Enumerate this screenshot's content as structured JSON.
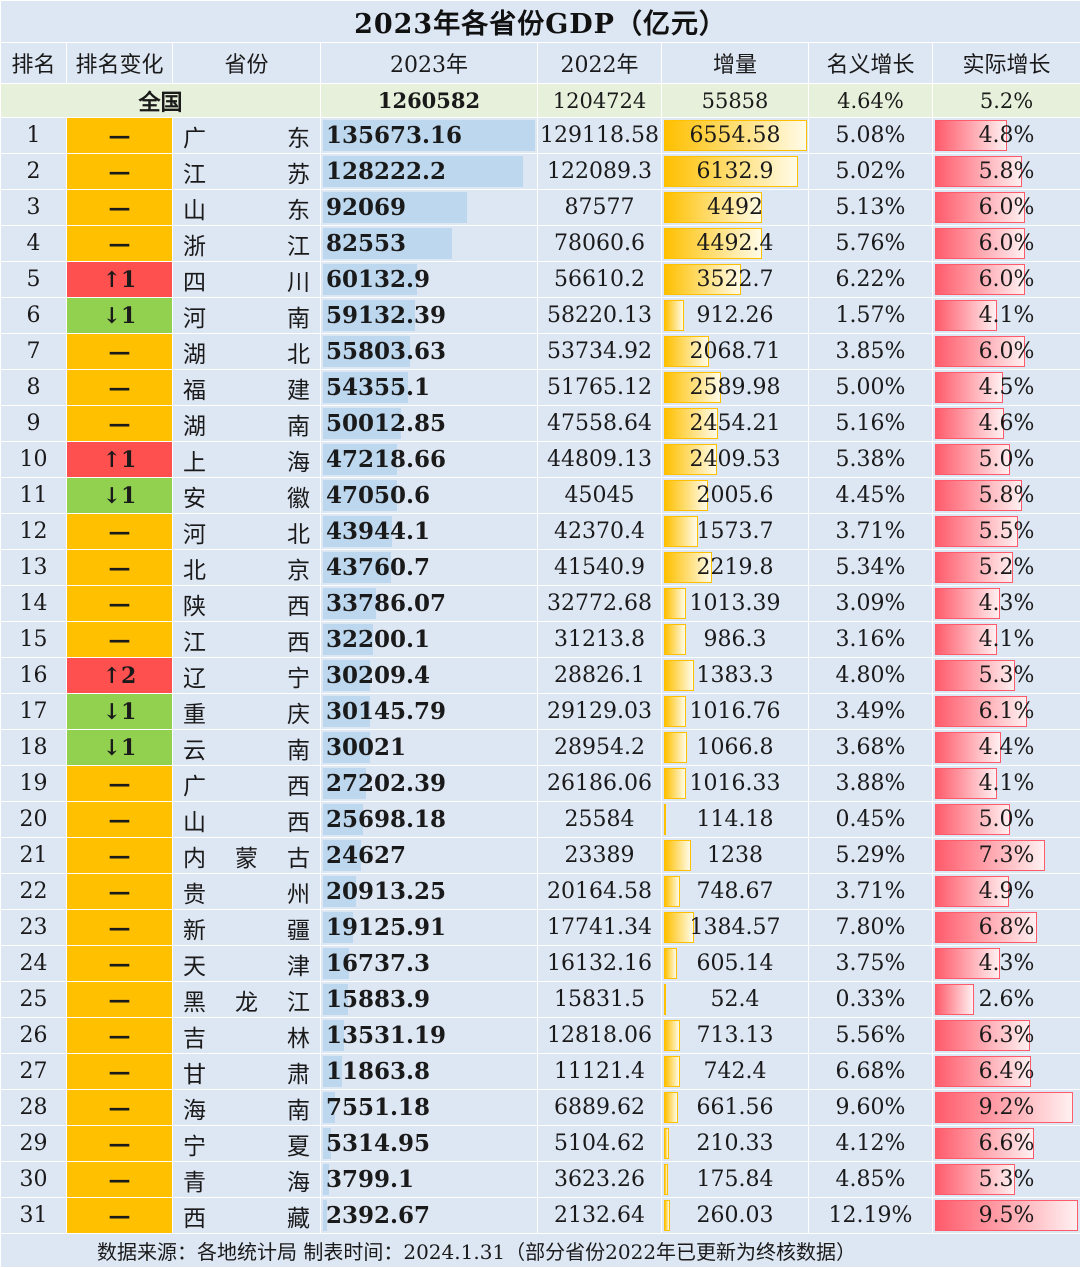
{
  "title": "2023年各省份GDP（亿元）",
  "headers": [
    "排名",
    "排名变化",
    "省份",
    "2023年",
    "2022年",
    "增量",
    "名义增长",
    "实际增长"
  ],
  "total": {
    "name": "全国",
    "gdp2023": "1260582",
    "gdp2022": "1204724",
    "increase": "55858",
    "nominal": "4.64%",
    "real": "5.2%"
  },
  "colors": {
    "same": "#ffc000",
    "up": "#ff5050",
    "down": "#92d050",
    "gdp_bar": "#bdd7ee",
    "increase_bar": "#ffc000",
    "real_bar": "#ff5b6b"
  },
  "change_symbols": {
    "same": "—",
    "up": "↑",
    "down": "↓"
  },
  "rows": [
    {
      "rank": "1",
      "change": "—",
      "province": "广东",
      "gdp2023": "135673.16",
      "gdp2022": "129118.58",
      "increase": "6554.58",
      "nominal": "5.08%",
      "real": "4.8%"
    },
    {
      "rank": "2",
      "change": "—",
      "province": "江苏",
      "gdp2023": "128222.2",
      "gdp2022": "122089.3",
      "increase": "6132.9",
      "nominal": "5.02%",
      "real": "5.8%"
    },
    {
      "rank": "3",
      "change": "—",
      "province": "山东",
      "gdp2023": "92069",
      "gdp2022": "87577",
      "increase": "4492",
      "nominal": "5.13%",
      "real": "6.0%"
    },
    {
      "rank": "4",
      "change": "—",
      "province": "浙江",
      "gdp2023": "82553",
      "gdp2022": "78060.6",
      "increase": "4492.4",
      "nominal": "5.76%",
      "real": "6.0%"
    },
    {
      "rank": "5",
      "change": "↑1",
      "province": "四川",
      "gdp2023": "60132.9",
      "gdp2022": "56610.2",
      "increase": "3522.7",
      "nominal": "6.22%",
      "real": "6.0%"
    },
    {
      "rank": "6",
      "change": "↓1",
      "province": "河南",
      "gdp2023": "59132.39",
      "gdp2022": "58220.13",
      "increase": "912.26",
      "nominal": "1.57%",
      "real": "4.1%"
    },
    {
      "rank": "7",
      "change": "—",
      "province": "湖北",
      "gdp2023": "55803.63",
      "gdp2022": "53734.92",
      "increase": "2068.71",
      "nominal": "3.85%",
      "real": "6.0%"
    },
    {
      "rank": "8",
      "change": "—",
      "province": "福建",
      "gdp2023": "54355.1",
      "gdp2022": "51765.12",
      "increase": "2589.98",
      "nominal": "5.00%",
      "real": "4.5%"
    },
    {
      "rank": "9",
      "change": "—",
      "province": "湖南",
      "gdp2023": "50012.85",
      "gdp2022": "47558.64",
      "increase": "2454.21",
      "nominal": "5.16%",
      "real": "4.6%"
    },
    {
      "rank": "10",
      "change": "↑1",
      "province": "上海",
      "gdp2023": "47218.66",
      "gdp2022": "44809.13",
      "increase": "2409.53",
      "nominal": "5.38%",
      "real": "5.0%"
    },
    {
      "rank": "11",
      "change": "↓1",
      "province": "安徽",
      "gdp2023": "47050.6",
      "gdp2022": "45045",
      "increase": "2005.6",
      "nominal": "4.45%",
      "real": "5.8%"
    },
    {
      "rank": "12",
      "change": "—",
      "province": "河北",
      "gdp2023": "43944.1",
      "gdp2022": "42370.4",
      "increase": "1573.7",
      "nominal": "3.71%",
      "real": "5.5%"
    },
    {
      "rank": "13",
      "change": "—",
      "province": "北京",
      "gdp2023": "43760.7",
      "gdp2022": "41540.9",
      "increase": "2219.8",
      "nominal": "5.34%",
      "real": "5.2%"
    },
    {
      "rank": "14",
      "change": "—",
      "province": "陕西",
      "gdp2023": "33786.07",
      "gdp2022": "32772.68",
      "increase": "1013.39",
      "nominal": "3.09%",
      "real": "4.3%"
    },
    {
      "rank": "15",
      "change": "—",
      "province": "江西",
      "gdp2023": "32200.1",
      "gdp2022": "31213.8",
      "increase": "986.3",
      "nominal": "3.16%",
      "real": "4.1%"
    },
    {
      "rank": "16",
      "change": "↑2",
      "province": "辽宁",
      "gdp2023": "30209.4",
      "gdp2022": "28826.1",
      "increase": "1383.3",
      "nominal": "4.80%",
      "real": "5.3%"
    },
    {
      "rank": "17",
      "change": "↓1",
      "province": "重庆",
      "gdp2023": "30145.79",
      "gdp2022": "29129.03",
      "increase": "1016.76",
      "nominal": "3.49%",
      "real": "6.1%"
    },
    {
      "rank": "18",
      "change": "↓1",
      "province": "云南",
      "gdp2023": "30021",
      "gdp2022": "28954.2",
      "increase": "1066.8",
      "nominal": "3.68%",
      "real": "4.4%"
    },
    {
      "rank": "19",
      "change": "—",
      "province": "广西",
      "gdp2023": "27202.39",
      "gdp2022": "26186.06",
      "increase": "1016.33",
      "nominal": "3.88%",
      "real": "4.1%"
    },
    {
      "rank": "20",
      "change": "—",
      "province": "山西",
      "gdp2023": "25698.18",
      "gdp2022": "25584",
      "increase": "114.18",
      "nominal": "0.45%",
      "real": "5.0%"
    },
    {
      "rank": "21",
      "change": "—",
      "province": "内蒙古",
      "gdp2023": "24627",
      "gdp2022": "23389",
      "increase": "1238",
      "nominal": "5.29%",
      "real": "7.3%"
    },
    {
      "rank": "22",
      "change": "—",
      "province": "贵州",
      "gdp2023": "20913.25",
      "gdp2022": "20164.58",
      "increase": "748.67",
      "nominal": "3.71%",
      "real": "4.9%"
    },
    {
      "rank": "23",
      "change": "—",
      "province": "新疆",
      "gdp2023": "19125.91",
      "gdp2022": "17741.34",
      "increase": "1384.57",
      "nominal": "7.80%",
      "real": "6.8%"
    },
    {
      "rank": "24",
      "change": "—",
      "province": "天津",
      "gdp2023": "16737.3",
      "gdp2022": "16132.16",
      "increase": "605.14",
      "nominal": "3.75%",
      "real": "4.3%"
    },
    {
      "rank": "25",
      "change": "—",
      "province": "黑龙江",
      "gdp2023": "15883.9",
      "gdp2022": "15831.5",
      "increase": "52.4",
      "nominal": "0.33%",
      "real": "2.6%"
    },
    {
      "rank": "26",
      "change": "—",
      "province": "吉林",
      "gdp2023": "13531.19",
      "gdp2022": "12818.06",
      "increase": "713.13",
      "nominal": "5.56%",
      "real": "6.3%"
    },
    {
      "rank": "27",
      "change": "—",
      "province": "甘肃",
      "gdp2023": "11863.8",
      "gdp2022": "11121.4",
      "increase": "742.4",
      "nominal": "6.68%",
      "real": "6.4%"
    },
    {
      "rank": "28",
      "change": "—",
      "province": "海南",
      "gdp2023": "7551.18",
      "gdp2022": "6889.62",
      "increase": "661.56",
      "nominal": "9.60%",
      "real": "9.2%"
    },
    {
      "rank": "29",
      "change": "—",
      "province": "宁夏",
      "gdp2023": "5314.95",
      "gdp2022": "5104.62",
      "increase": "210.33",
      "nominal": "4.12%",
      "real": "6.6%"
    },
    {
      "rank": "30",
      "change": "—",
      "province": "青海",
      "gdp2023": "3799.1",
      "gdp2022": "3623.26",
      "increase": "175.84",
      "nominal": "4.85%",
      "real": "5.3%"
    },
    {
      "rank": "31",
      "change": "—",
      "province": "西藏",
      "gdp2023": "2392.67",
      "gdp2022": "2132.64",
      "increase": "260.03",
      "nominal": "12.19%",
      "real": "9.5%"
    }
  ],
  "footer": "数据来源：各地统计局    制表时间：2024.1.31（部分省份2022年已更新为终核数据）"
}
